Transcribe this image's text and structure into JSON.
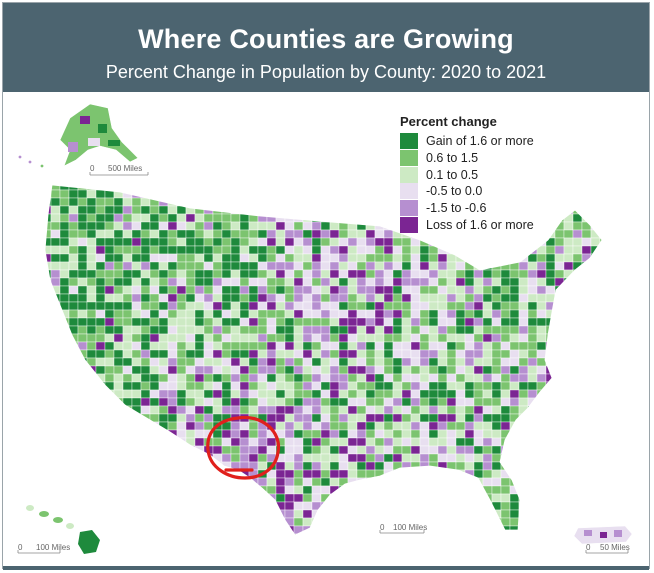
{
  "header": {
    "title": "Where Counties are Growing",
    "subtitle": "Percent Change in Population by County: 2020 to 2021"
  },
  "legend": {
    "title": "Percent change",
    "items": [
      {
        "label": "Gain of 1.6 or more",
        "color": "#1e8a3c"
      },
      {
        "label": "0.6 to 1.5",
        "color": "#7cc46f"
      },
      {
        "label": "0.1 to 0.5",
        "color": "#cdeac4"
      },
      {
        "label": "-0.5 to 0.0",
        "color": "#e8dff0"
      },
      {
        "label": "-1.5 to -0.6",
        "color": "#b68fd0"
      },
      {
        "label": "Loss of 1.6 or more",
        "color": "#7b2593"
      }
    ]
  },
  "scales": {
    "alaska": "500 Miles",
    "hawaii": "100 Miles",
    "conus": "100 Miles",
    "puerto_rico": "50 Miles"
  },
  "scale_zero": "0",
  "annotation": {
    "color": "#e0201c"
  }
}
